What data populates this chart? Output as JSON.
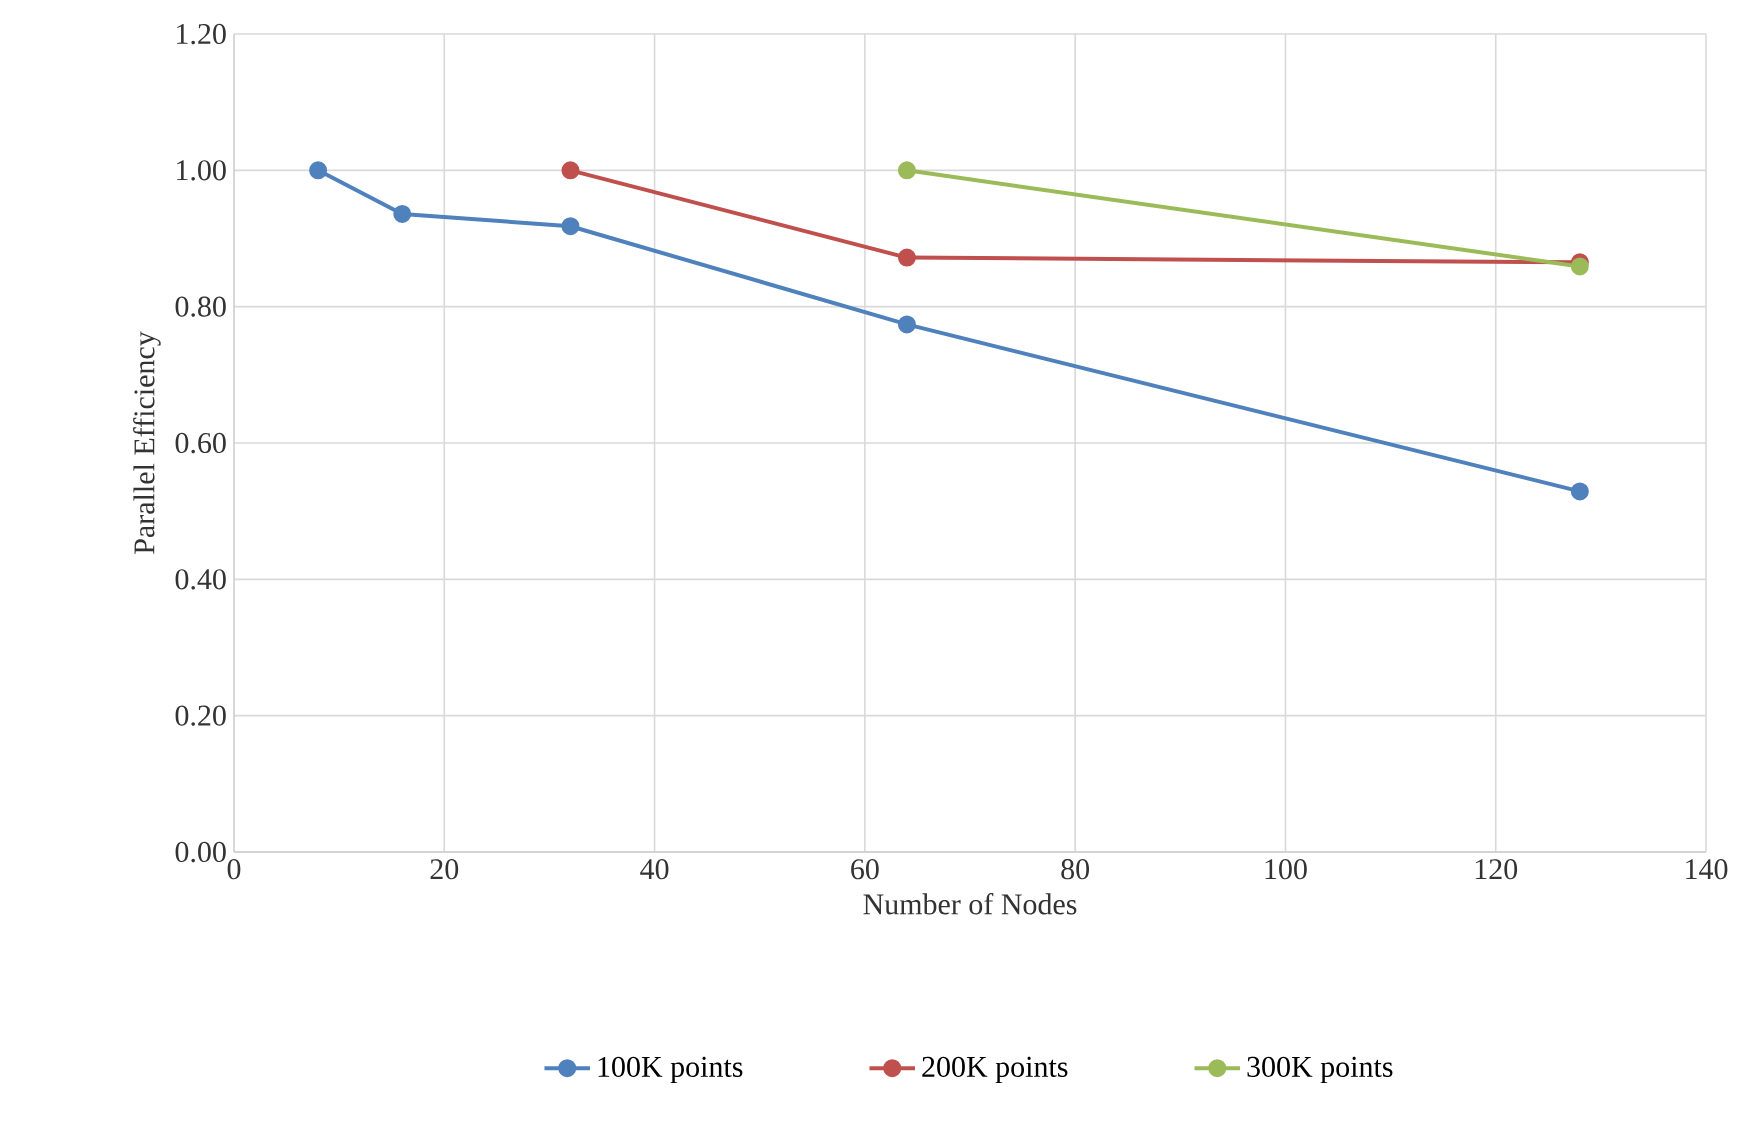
{
  "chart_data": {
    "type": "line",
    "xlabel": "Number of Nodes",
    "ylabel": "Parallel Efficiency",
    "xlim": [
      0,
      140
    ],
    "xticks": [
      0,
      20,
      40,
      60,
      80,
      100,
      120,
      140
    ],
    "ylim": [
      0,
      1.2
    ],
    "yticks": [
      {
        "value": 0,
        "label": "0.00"
      },
      {
        "value": 0.2,
        "label": "0.20"
      },
      {
        "value": 0.4,
        "label": "0.40"
      },
      {
        "value": 0.6,
        "label": "0.60"
      },
      {
        "value": 0.8,
        "label": "0.80"
      },
      {
        "value": 1.0,
        "label": "1.00"
      },
      {
        "value": 1.2,
        "label": "1.20"
      }
    ],
    "grid": true,
    "legend": "bottom",
    "marker": "circle",
    "line_style": "solid",
    "series": [
      {
        "name": "100K points",
        "color": "#4f81bd",
        "x": [
          8,
          16,
          32,
          64,
          128
        ],
        "values": [
          1.0,
          0.936,
          0.918,
          0.774,
          0.529
        ]
      },
      {
        "name": "200K points",
        "color": "#c0504d",
        "x": [
          32,
          64,
          128
        ],
        "values": [
          1.0,
          0.872,
          0.865
        ]
      },
      {
        "name": "300K points",
        "color": "#9bbb59",
        "x": [
          64,
          128
        ],
        "values": [
          1.0,
          0.859
        ]
      }
    ]
  }
}
